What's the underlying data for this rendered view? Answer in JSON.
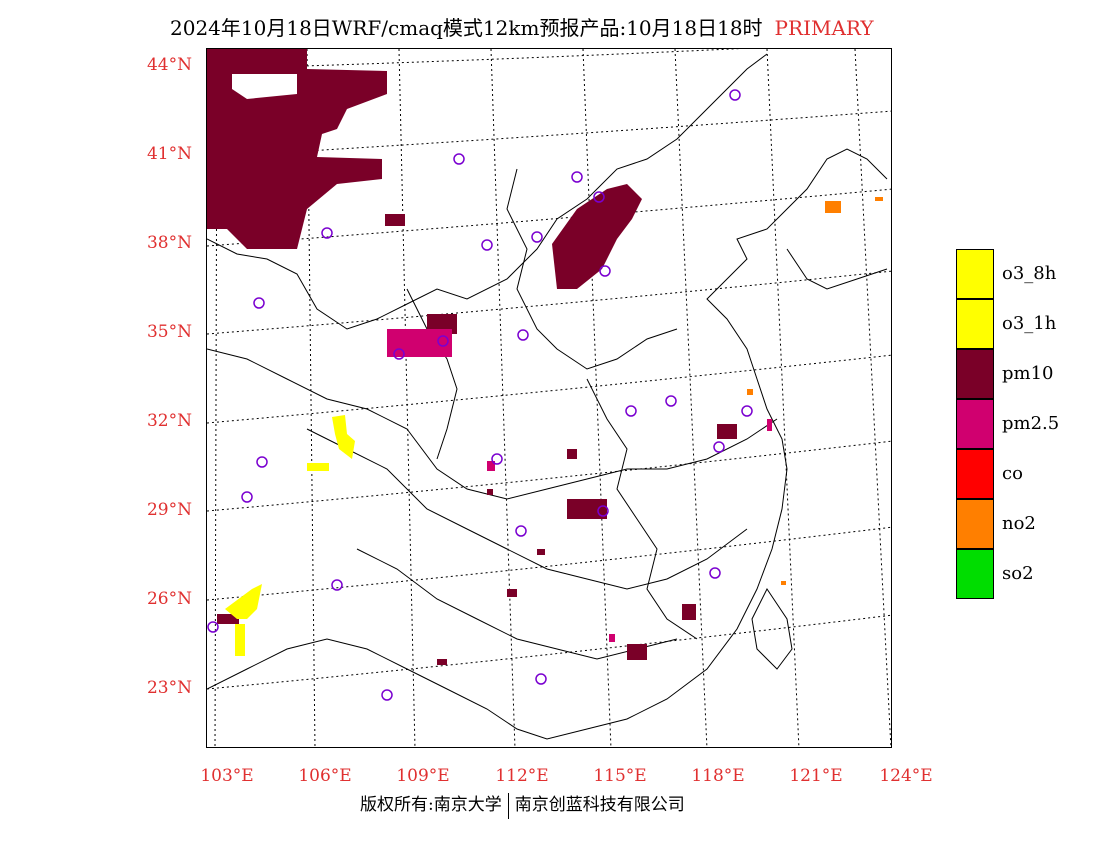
{
  "header": {
    "title": "2024年10月18日WRF/cmaq模式12km预报产品:10月18日18时",
    "tag": "PRIMARY"
  },
  "axes": {
    "lat_labels": [
      "44°N",
      "41°N",
      "38°N",
      "35°N",
      "32°N",
      "29°N",
      "26°N",
      "23°N"
    ],
    "lon_labels": [
      "103°E",
      "106°E",
      "109°E",
      "112°E",
      "115°E",
      "118°E",
      "121°E",
      "124°E"
    ]
  },
  "legend": [
    {
      "label": "o3_8h",
      "color": "#ffff00"
    },
    {
      "label": "o3_1h",
      "color": "#ffff00"
    },
    {
      "label": "pm10",
      "color": "#7a0028"
    },
    {
      "label": "pm2.5",
      "color": "#d0006f"
    },
    {
      "label": "co",
      "color": "#ff0000"
    },
    {
      "label": "no2",
      "color": "#ff7f00"
    },
    {
      "label": "so2",
      "color": "#00dd00"
    }
  ],
  "footer": {
    "left": "版权所有:南京大学",
    "right": "南京创蓝科技有限公司"
  }
}
